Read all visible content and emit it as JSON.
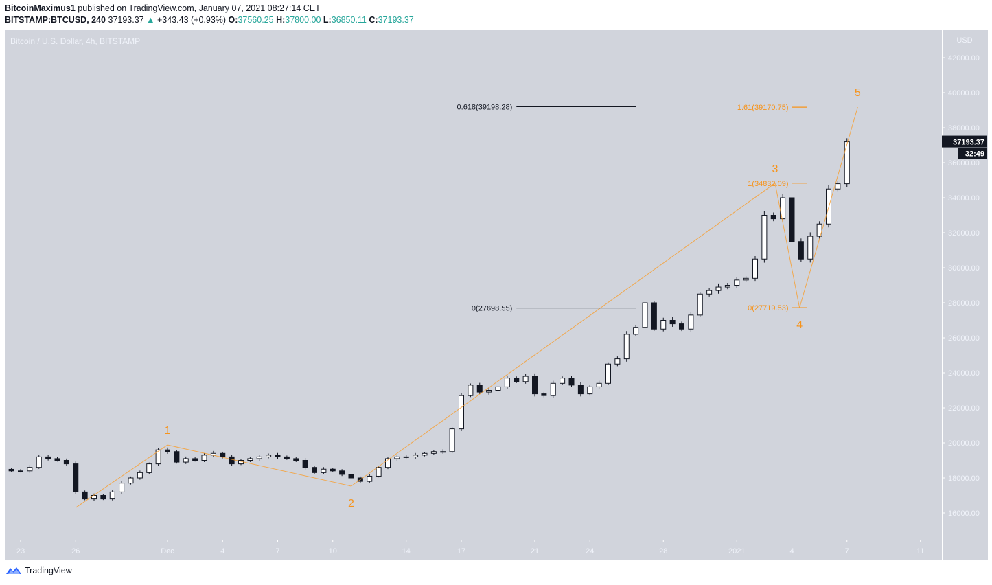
{
  "header": {
    "author": "BitcoinMaximus1",
    "published": "published on TradingView.com, January 07, 2021 08:27:14 CET",
    "symbol": "BITSTAMP:BTCUSD, 240",
    "last": "37193.37",
    "change": "+343.43 (+0.93%)",
    "o_label": "O:",
    "o": "37560.25",
    "h_label": "H:",
    "h": "37800.00",
    "l_label": "L:",
    "l": "36850.11",
    "c_label": "C:",
    "c": "37193.37",
    "up_color": "#26a69a"
  },
  "pane_title": "Bitcoin / U.S. Dollar, 4h, BITSTAMP",
  "price_tag": "37193.37",
  "countdown": "32:49",
  "footer": {
    "brand": "TradingView",
    "logo_icon": "tradingview-logo-icon"
  },
  "chart_data": {
    "type": "candlestick",
    "currency": "USD",
    "ylim": [
      15000,
      43000
    ],
    "y_ticks": [
      "16000.00",
      "18000.00",
      "20000.00",
      "22000.00",
      "24000.00",
      "26000.00",
      "28000.00",
      "30000.00",
      "32000.00",
      "34000.00",
      "36000.00",
      "38000.00",
      "40000.00",
      "42000.00"
    ],
    "x_ticks": [
      [
        "23",
        "2020-11-23"
      ],
      [
        "26",
        "2020-11-26"
      ],
      [
        "Dec",
        "2020-12-01"
      ],
      [
        "4",
        "2020-12-04"
      ],
      [
        "7",
        "2020-12-07"
      ],
      [
        "10",
        "2020-12-10"
      ],
      [
        "14",
        "2020-12-14"
      ],
      [
        "17",
        "2020-12-17"
      ],
      [
        "21",
        "2020-12-21"
      ],
      [
        "24",
        "2020-12-24"
      ],
      [
        "28",
        "2020-12-28"
      ],
      [
        "2021",
        "2021-01-01"
      ],
      [
        "4",
        "2021-01-04"
      ],
      [
        "7",
        "2021-01-07"
      ],
      [
        "11",
        "2021-01-11"
      ]
    ],
    "colors": {
      "up_body": "#ffffff",
      "down_body": "#131722",
      "wave": "#f7a035",
      "fib_black": "#131722"
    },
    "closes": [
      [
        "2020-11-22 12:00",
        18400
      ],
      [
        "2020-11-23 00:00",
        18400
      ],
      [
        "2020-11-23 12:00",
        18600
      ],
      [
        "2020-11-24 00:00",
        19200
      ],
      [
        "2020-11-24 12:00",
        19100
      ],
      [
        "2020-11-25 00:00",
        19000
      ],
      [
        "2020-11-25 12:00",
        18800
      ],
      [
        "2020-11-26 00:00",
        17200
      ],
      [
        "2020-11-26 12:00",
        16800
      ],
      [
        "2020-11-27 00:00",
        17000
      ],
      [
        "2020-11-27 12:00",
        16800
      ],
      [
        "2020-11-28 00:00",
        17200
      ],
      [
        "2020-11-28 12:00",
        17700
      ],
      [
        "2020-11-29 00:00",
        18000
      ],
      [
        "2020-11-29 12:00",
        18300
      ],
      [
        "2020-11-30 00:00",
        18800
      ],
      [
        "2020-11-30 12:00",
        19600
      ],
      [
        "2020-12-01 00:00",
        19500
      ],
      [
        "2020-12-01 12:00",
        18900
      ],
      [
        "2020-12-02 00:00",
        19100
      ],
      [
        "2020-12-02 12:00",
        19000
      ],
      [
        "2020-12-03 00:00",
        19300
      ],
      [
        "2020-12-03 12:00",
        19400
      ],
      [
        "2020-12-04 00:00",
        19200
      ],
      [
        "2020-12-04 12:00",
        18800
      ],
      [
        "2020-12-05 00:00",
        19000
      ],
      [
        "2020-12-05 12:00",
        19100
      ],
      [
        "2020-12-06 00:00",
        19200
      ],
      [
        "2020-12-06 12:00",
        19300
      ],
      [
        "2020-12-07 00:00",
        19200
      ],
      [
        "2020-12-07 12:00",
        19100
      ],
      [
        "2020-12-08 00:00",
        19000
      ],
      [
        "2020-12-08 12:00",
        18600
      ],
      [
        "2020-12-09 00:00",
        18300
      ],
      [
        "2020-12-09 12:00",
        18500
      ],
      [
        "2020-12-10 00:00",
        18400
      ],
      [
        "2020-12-10 12:00",
        18200
      ],
      [
        "2020-12-11 00:00",
        18000
      ],
      [
        "2020-12-11 12:00",
        17800
      ],
      [
        "2020-12-12 00:00",
        18100
      ],
      [
        "2020-12-12 12:00",
        18600
      ],
      [
        "2020-12-13 00:00",
        19100
      ],
      [
        "2020-12-13 12:00",
        19200
      ],
      [
        "2020-12-14 00:00",
        19200
      ],
      [
        "2020-12-14 12:00",
        19300
      ],
      [
        "2020-12-15 00:00",
        19400
      ],
      [
        "2020-12-15 12:00",
        19500
      ],
      [
        "2020-12-16 00:00",
        19500
      ],
      [
        "2020-12-16 12:00",
        20800
      ],
      [
        "2020-12-17 00:00",
        22700
      ],
      [
        "2020-12-17 12:00",
        23300
      ],
      [
        "2020-12-18 00:00",
        22900
      ],
      [
        "2020-12-18 12:00",
        23000
      ],
      [
        "2020-12-19 00:00",
        23200
      ],
      [
        "2020-12-19 12:00",
        23700
      ],
      [
        "2020-12-20 00:00",
        23500
      ],
      [
        "2020-12-20 12:00",
        23800
      ],
      [
        "2020-12-21 00:00",
        22800
      ],
      [
        "2020-12-21 12:00",
        22700
      ],
      [
        "2020-12-22 00:00",
        23400
      ],
      [
        "2020-12-22 12:00",
        23700
      ],
      [
        "2020-12-23 00:00",
        23300
      ],
      [
        "2020-12-23 12:00",
        22800
      ],
      [
        "2020-12-24 00:00",
        23200
      ],
      [
        "2020-12-24 12:00",
        23400
      ],
      [
        "2020-12-25 00:00",
        24500
      ],
      [
        "2020-12-25 12:00",
        24800
      ],
      [
        "2020-12-26 00:00",
        26200
      ],
      [
        "2020-12-26 12:00",
        26600
      ],
      [
        "2020-12-27 00:00",
        28000
      ],
      [
        "2020-12-27 12:00",
        26500
      ],
      [
        "2020-12-28 00:00",
        27000
      ],
      [
        "2020-12-28 12:00",
        26800
      ],
      [
        "2020-12-29 00:00",
        26500
      ],
      [
        "2020-12-29 12:00",
        27300
      ],
      [
        "2020-12-30 00:00",
        28500
      ],
      [
        "2020-12-30 12:00",
        28700
      ],
      [
        "2020-12-31 00:00",
        28900
      ],
      [
        "2020-12-31 12:00",
        29000
      ],
      [
        "2021-01-01 00:00",
        29300
      ],
      [
        "2021-01-01 12:00",
        29400
      ],
      [
        "2021-01-02 00:00",
        30500
      ],
      [
        "2021-01-02 12:00",
        33000
      ],
      [
        "2021-01-03 00:00",
        32800
      ],
      [
        "2021-01-03 12:00",
        34000
      ],
      [
        "2021-01-04 00:00",
        31500
      ],
      [
        "2021-01-04 12:00",
        30500
      ],
      [
        "2021-01-05 00:00",
        31800
      ],
      [
        "2021-01-05 12:00",
        32500
      ],
      [
        "2021-01-06 00:00",
        34500
      ],
      [
        "2021-01-06 12:00",
        34800
      ],
      [
        "2021-01-07 00:00",
        37193.37
      ]
    ],
    "wave": [
      {
        "label": "",
        "date": "2020-11-26 00:00",
        "price": 16300
      },
      {
        "label": "1",
        "date": "2020-12-01 00:00",
        "price": 19880
      },
      {
        "label": "2",
        "date": "2020-12-11 00:00",
        "price": 17530
      },
      {
        "label": "3",
        "date": "2021-01-03 02:00",
        "price": 34832.09
      },
      {
        "label": "4",
        "date": "2021-01-04 10:00",
        "price": 27719.53
      },
      {
        "label": "5",
        "date": "2021-01-07 14:00",
        "price": 39170.75
      }
    ],
    "fib_black": [
      {
        "label": "0.618(39198.28)",
        "price": 39198.28,
        "from": "2020-12-20 00:00",
        "to": "2020-12-26 12:00"
      },
      {
        "label": "0(27698.55)",
        "price": 27698.55,
        "from": "2020-12-20 00:00",
        "to": "2020-12-26 12:00"
      }
    ],
    "fib_orange": [
      {
        "label": "1.61(39170.75)",
        "price": 39170.75,
        "from": "2021-01-04 00:00",
        "to": "2021-01-04 20:00"
      },
      {
        "label": "1(34832.09)",
        "price": 34832.09,
        "from": "2021-01-04 00:00",
        "to": "2021-01-04 20:00"
      },
      {
        "label": "0(27719.53)",
        "price": 27719.53,
        "from": "2021-01-04 00:00",
        "to": "2021-01-04 20:00"
      }
    ]
  }
}
